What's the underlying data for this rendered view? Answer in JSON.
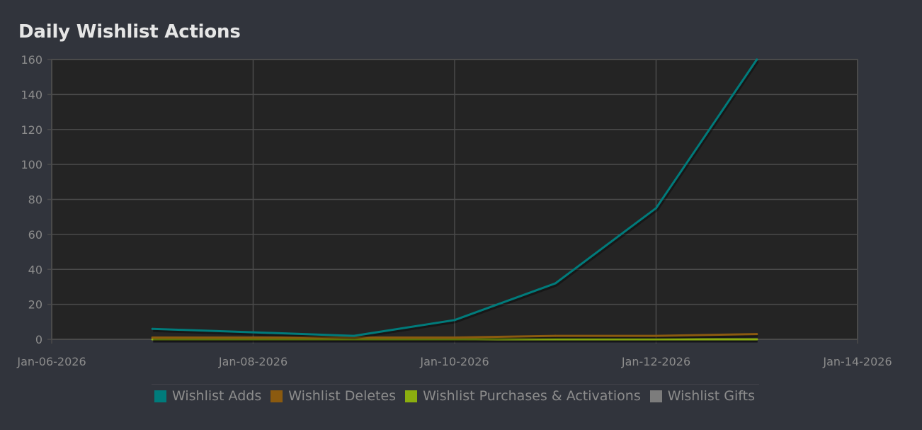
{
  "chart_data": {
    "type": "line",
    "title": "Daily Wishlist Actions",
    "xlabel": "",
    "ylabel": "",
    "x_axis": {
      "type": "date",
      "range": [
        "2026-01-06",
        "2026-01-14"
      ],
      "ticks": [
        "Jan-06-2026",
        "Jan-08-2026",
        "Jan-10-2026",
        "Jan-12-2026",
        "Jan-14-2026"
      ]
    },
    "y_axis": {
      "range": [
        0,
        160
      ],
      "ticks": [
        "0",
        "20",
        "40",
        "60",
        "80",
        "100",
        "120",
        "140",
        "160"
      ]
    },
    "grid": true,
    "legend_position": "bottom",
    "dates": [
      "2026-01-07",
      "2026-01-08",
      "2026-01-09",
      "2026-01-10",
      "2026-01-11",
      "2026-01-12",
      "2026-01-13"
    ],
    "series": [
      {
        "name": "Wishlist Adds",
        "color": "#007b7b",
        "values": [
          6,
          4,
          2,
          11,
          32,
          75,
          160
        ]
      },
      {
        "name": "Wishlist Deletes",
        "color": "#8b5a0f",
        "values": [
          1,
          1,
          1,
          1,
          2,
          2,
          3
        ]
      },
      {
        "name": "Wishlist Purchases & Activations",
        "color": "#8bae0f",
        "values": [
          0,
          0,
          0,
          0,
          0,
          0,
          0
        ]
      },
      {
        "name": "Wishlist Gifts",
        "color": "#7c7c7c",
        "values": [
          0,
          0,
          0,
          0,
          0,
          0,
          0
        ]
      }
    ]
  }
}
